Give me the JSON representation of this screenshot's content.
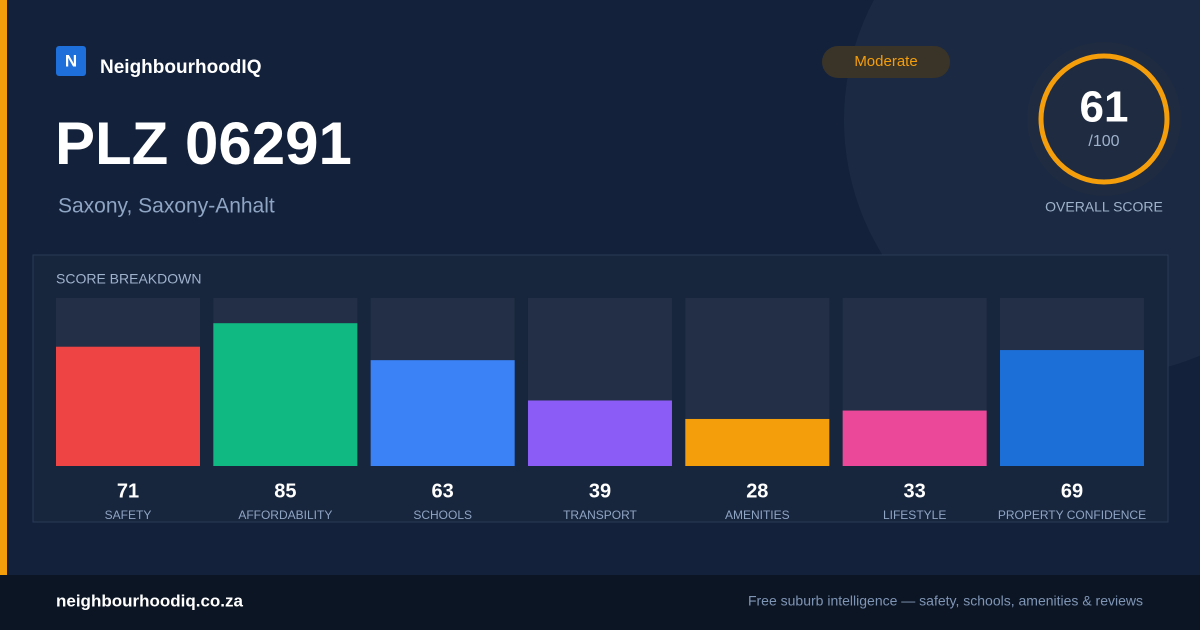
{
  "brand": {
    "logo": "N",
    "name": "NeighbourhoodIQ"
  },
  "header": {
    "title": "PLZ 06291",
    "subtitle": "Saxony, Saxony-Anhalt",
    "badge": "Moderate"
  },
  "score": {
    "value": 61,
    "max_label": "/100",
    "label": "OVERALL SCORE"
  },
  "chart_data": {
    "type": "bar",
    "title": "SCORE BREAKDOWN",
    "categories": [
      "SAFETY",
      "AFFORDABILITY",
      "SCHOOLS",
      "TRANSPORT",
      "AMENITIES",
      "LIFESTYLE",
      "PROPERTY CONFIDENCE"
    ],
    "values": [
      71,
      85,
      63,
      39,
      28,
      33,
      69
    ],
    "colors": [
      "#ef4444",
      "#10b981",
      "#3b82f6",
      "#8b5cf6",
      "#f59e0b",
      "#ec4899",
      "#1d6fd8"
    ],
    "ylim": [
      0,
      100
    ]
  },
  "footer": {
    "site": "neighbourhoodiq.co.za",
    "tagline": "Free suburb intelligence — safety, schools, amenities & reviews"
  }
}
